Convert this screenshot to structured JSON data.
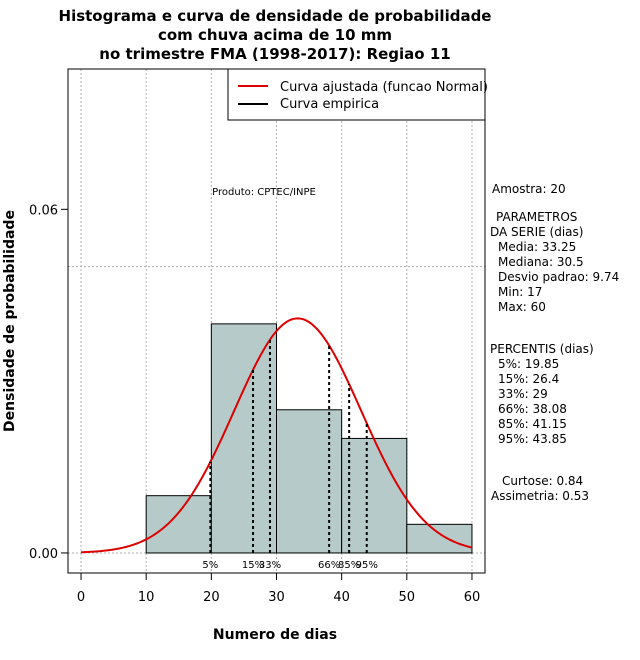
{
  "chart_data": {
    "type": "histogram",
    "title_lines": [
      "Histograma e curva de densidade de probabilidade",
      "com chuva acima de 10 mm",
      "no trimestre FMA (1998-2017): Regiao 11"
    ],
    "xlabel": "Numero de dias",
    "ylabel": "Densidade de probabilidade",
    "xlim": [
      -2,
      62
    ],
    "ylim": [
      -0.0035,
      0.0845
    ],
    "x_ticks": [
      0,
      10,
      20,
      30,
      40,
      50,
      60
    ],
    "x_tick_labels": [
      "0",
      "10",
      "20",
      "30",
      "40",
      "50",
      "60"
    ],
    "y_ticks": [
      0.0,
      0.06
    ],
    "y_tick_labels": [
      "0.00",
      "0.06"
    ],
    "grid_x": [
      0,
      10,
      20,
      30,
      40,
      50,
      60
    ],
    "grid_y": [
      0.0,
      0.05
    ],
    "bins": [
      {
        "x0": 10,
        "x1": 20,
        "density": 0.01
      },
      {
        "x0": 20,
        "x1": 30,
        "density": 0.04
      },
      {
        "x0": 30,
        "x1": 40,
        "density": 0.025
      },
      {
        "x0": 40,
        "x1": 50,
        "density": 0.02
      },
      {
        "x0": 50,
        "x1": 60,
        "density": 0.005
      }
    ],
    "bar_color": "#b6cbc9",
    "normal_fit": {
      "mean": 33.25,
      "sd": 9.74,
      "from": 0,
      "to": 60,
      "color": "#dd0000"
    },
    "percentile_marks": [
      {
        "label": "5%",
        "x": 19.85
      },
      {
        "label": "15%",
        "x": 26.4
      },
      {
        "label": "33%",
        "x": 29
      },
      {
        "label": "66%",
        "x": 38.08
      },
      {
        "label": "85%",
        "x": 41.15
      },
      {
        "label": "95%",
        "x": 43.85
      }
    ],
    "legend": [
      {
        "label": "Curva ajustada (funcao Normal)",
        "color": "#dd0000"
      },
      {
        "label": "Curva empirica",
        "color": "#000000"
      }
    ],
    "product_label": "Produto: CPTEC/INPE"
  },
  "side_panel": {
    "sample": "Amostra: 20",
    "params_header_1": "PARAMETROS",
    "params_header_2": "DA SERIE (dias)",
    "media": "Media: 33.25",
    "mediana": "Mediana: 30.5",
    "desvio": "Desvio padrao: 9.74",
    "min": "Min: 17",
    "max": "Max: 60",
    "percentis_header": "PERCENTIS (dias)",
    "p5": "5%: 19.85",
    "p15": "15%: 26.4",
    "p33": "33%: 29",
    "p66": "66%: 38.08",
    "p85": "85%: 41.15",
    "p95": "95%: 43.85",
    "curtose": "Curtose: 0.84",
    "assimetria": "Assimetria: 0.53"
  }
}
